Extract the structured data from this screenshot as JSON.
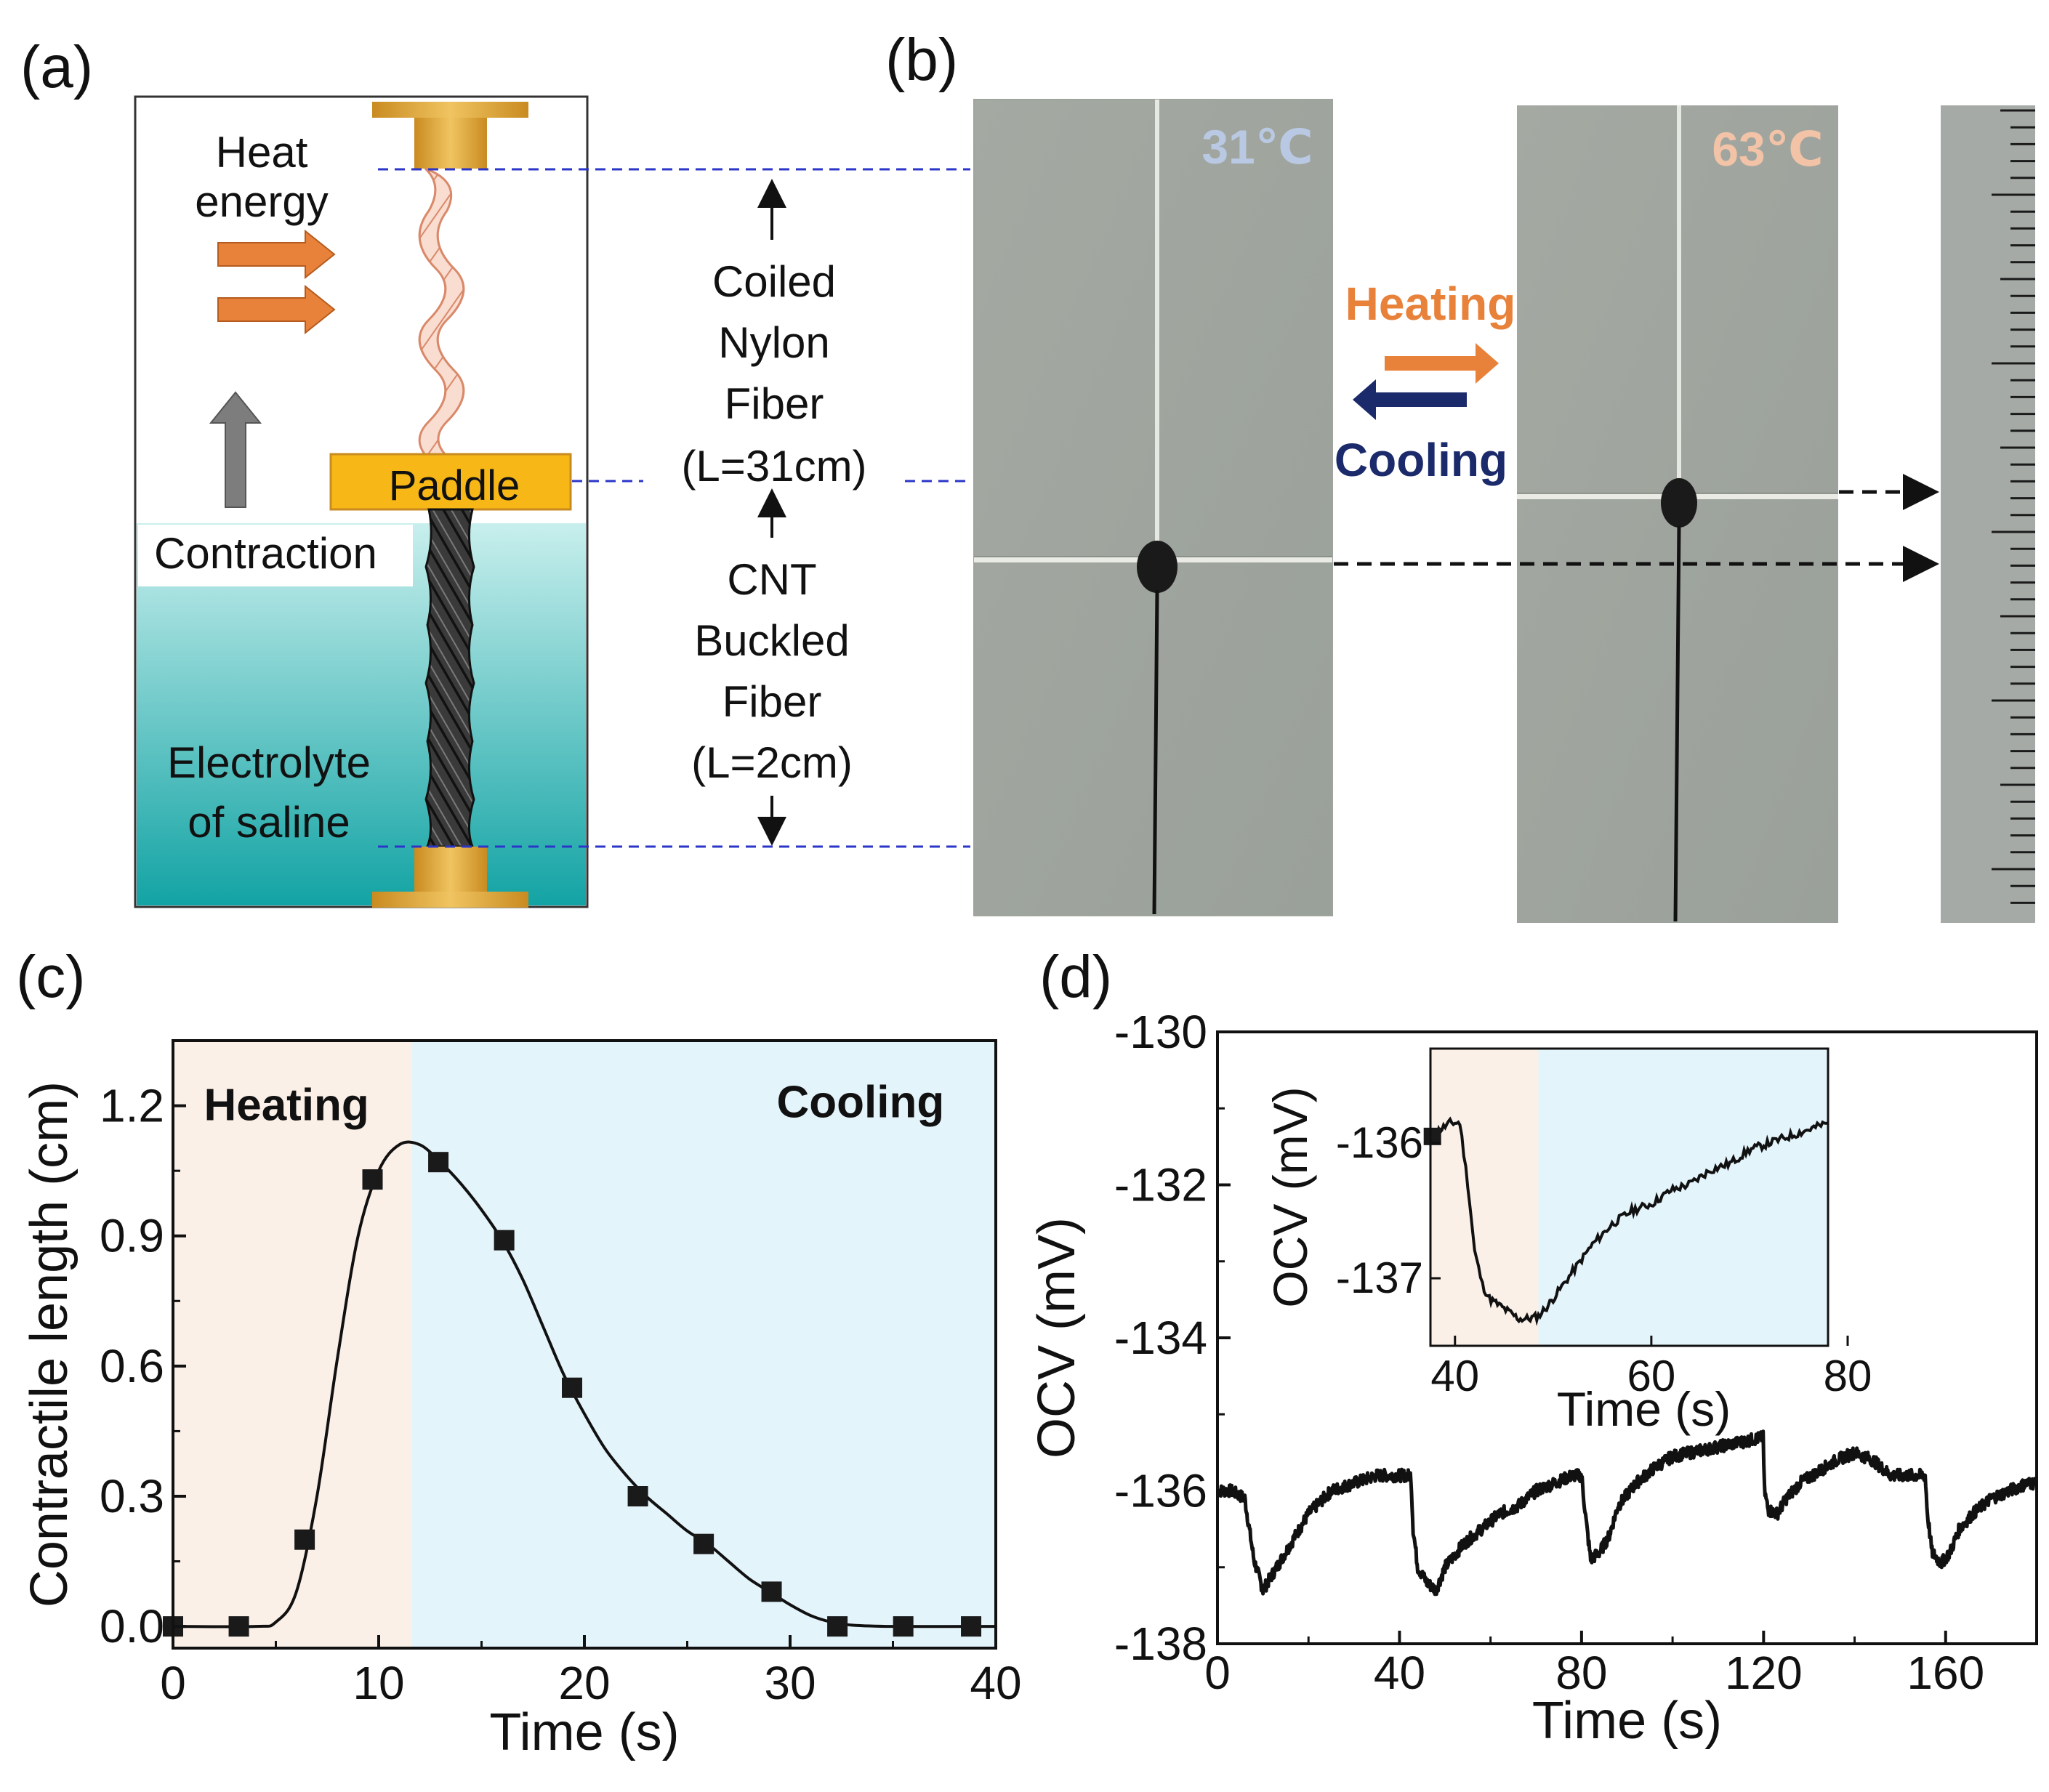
{
  "panels": {
    "a": {
      "label": "(a)",
      "heat_energy_line1": "Heat",
      "heat_energy_line2": "energy",
      "paddle": "Paddle",
      "contraction": "Contraction",
      "electrolyte_line1": "Electrolyte",
      "electrolyte_line2": "of saline",
      "coiled_line1": "Coiled",
      "coiled_line2": "Nylon",
      "coiled_line3": "Fiber",
      "coiled_line4": "(L=31cm)",
      "cnt_line1": "CNT",
      "cnt_line2": "Buckled",
      "cnt_line3": "Fiber",
      "cnt_line4": "(L=2cm)",
      "colors": {
        "arrow_orange": "#e8823a",
        "gold": "#e0a93a",
        "paddle": "#f6b717",
        "electrolyte": "#17a8a8",
        "dashed": "#2b36c8"
      }
    },
    "b": {
      "label": "(b)",
      "temp_left": "31℃",
      "temp_right": "63℃",
      "heating": "Heating",
      "cooling": "Cooling",
      "colors": {
        "temp_left": "#b9c9e3",
        "temp_right": "#f2c3a6",
        "heating": "#e8823a",
        "cooling": "#1b2a6b",
        "photo_bg": "#a5aaa3"
      }
    },
    "c": {
      "label": "(c)",
      "heating": "Heating",
      "cooling": "Cooling",
      "colors": {
        "heating_bg": "#fbf0e8",
        "cooling_bg": "#e4f4fb"
      }
    },
    "d": {
      "label": "(d)",
      "colors": {
        "heating_bg": "#fbf0e8",
        "cooling_bg": "#e4f4fb"
      }
    }
  },
  "chart_data": [
    {
      "panel": "c",
      "type": "line",
      "xlabel": "Time (s)",
      "ylabel": "Contractile length (cm)",
      "xlim": [
        0,
        40
      ],
      "ylim": [
        -0.05,
        1.35
      ],
      "xticks": [
        "0",
        "10",
        "20",
        "30",
        "40"
      ],
      "yticks": [
        "0.0",
        "0.3",
        "0.6",
        "0.9",
        "1.2"
      ],
      "regions": [
        {
          "name": "Heating",
          "x": [
            0,
            11.6
          ]
        },
        {
          "name": "Cooling",
          "x": [
            11.6,
            40
          ]
        }
      ],
      "markers": {
        "x": [
          0,
          3.2,
          6.4,
          9.7,
          12.9,
          16.1,
          19.4,
          22.6,
          25.8,
          29.1,
          32.3,
          35.5,
          38.8
        ],
        "y": [
          0.0,
          0.0,
          0.2,
          1.03,
          1.07,
          0.89,
          0.55,
          0.3,
          0.19,
          0.08,
          0.0,
          0.0,
          0.0
        ]
      },
      "curve": {
        "x": [
          0,
          4,
          5,
          6,
          7,
          8,
          9,
          10,
          11,
          12,
          13,
          14,
          15,
          16,
          17,
          18,
          19,
          20,
          21,
          22,
          23,
          24,
          25,
          26,
          27,
          28,
          29,
          30,
          31,
          32,
          33,
          35,
          40
        ],
        "y": [
          0.0,
          0.0,
          0.01,
          0.08,
          0.3,
          0.62,
          0.9,
          1.05,
          1.11,
          1.11,
          1.07,
          1.02,
          0.96,
          0.89,
          0.8,
          0.69,
          0.58,
          0.49,
          0.41,
          0.35,
          0.3,
          0.26,
          0.22,
          0.19,
          0.15,
          0.11,
          0.08,
          0.05,
          0.025,
          0.01,
          0.003,
          0.0,
          0.0
        ]
      }
    },
    {
      "panel": "d",
      "type": "line",
      "xlabel": "Time (s)",
      "ylabel": "OCV (mV)",
      "xlim": [
        0,
        180
      ],
      "ylim": [
        -138,
        -130
      ],
      "xticks": [
        "0",
        "40",
        "80",
        "120",
        "160"
      ],
      "yticks": [
        "-130",
        "-132",
        "-134",
        "-136",
        "-138"
      ],
      "series": {
        "x": [
          0,
          3,
          6,
          8,
          10,
          12,
          16,
          20,
          25,
          30,
          35,
          40,
          42.5,
          43,
          44,
          46,
          48,
          50,
          54,
          58,
          62,
          66,
          70,
          74,
          78,
          80,
          81,
          82,
          84,
          86,
          88,
          92,
          96,
          100,
          104,
          108,
          112,
          116,
          119.9,
          120.2,
          121,
          123,
          125,
          128,
          132,
          136,
          140,
          144,
          148,
          152,
          154,
          155.5,
          156,
          157,
          159,
          161,
          163,
          166,
          170,
          174,
          178,
          180
        ],
        "y": [
          -136.0,
          -136.0,
          -136.1,
          -136.9,
          -137.3,
          -137.1,
          -136.7,
          -136.3,
          -136.0,
          -135.9,
          -135.8,
          -135.8,
          -135.8,
          -136.5,
          -137.0,
          -137.2,
          -137.3,
          -137.0,
          -136.7,
          -136.5,
          -136.3,
          -136.2,
          -136.0,
          -135.9,
          -135.8,
          -135.8,
          -136.4,
          -136.9,
          -136.8,
          -136.6,
          -136.2,
          -135.9,
          -135.7,
          -135.55,
          -135.5,
          -135.45,
          -135.4,
          -135.35,
          -135.3,
          -136.0,
          -136.25,
          -136.3,
          -136.1,
          -135.9,
          -135.75,
          -135.6,
          -135.5,
          -135.6,
          -135.8,
          -135.8,
          -135.8,
          -135.8,
          -136.3,
          -136.8,
          -136.95,
          -136.8,
          -136.5,
          -136.3,
          -136.1,
          -136.0,
          -135.9,
          -135.9
        ]
      },
      "inset": {
        "xlabel": "Time (s)",
        "ylabel": "OCV (mV)",
        "xlim": [
          37.5,
          78
        ],
        "ylim": [
          -137.5,
          -135.3
        ],
        "xticks": [
          "40",
          "60",
          "80"
        ],
        "yticks": [
          "-136",
          "-137"
        ],
        "regions": [
          {
            "name": "heating",
            "x": [
              37.5,
              48.5
            ]
          },
          {
            "name": "cooling",
            "x": [
              48.5,
              78
            ]
          }
        ],
        "series": {
          "x": [
            37.5,
            38.5,
            39.5,
            40.5,
            41.3,
            42,
            42.8,
            43.5,
            44.5,
            45.5,
            46.5,
            47.5,
            48.5,
            49.5,
            50.5,
            52,
            54,
            56,
            58,
            60,
            62,
            64,
            66,
            68,
            70,
            72,
            74,
            76,
            78
          ],
          "y": [
            -135.95,
            -135.9,
            -135.85,
            -135.85,
            -136.3,
            -136.8,
            -137.05,
            -137.15,
            -137.2,
            -137.25,
            -137.3,
            -137.3,
            -137.28,
            -137.2,
            -137.1,
            -136.95,
            -136.75,
            -136.6,
            -136.5,
            -136.45,
            -136.35,
            -136.3,
            -136.2,
            -136.15,
            -136.05,
            -136.0,
            -135.95,
            -135.9,
            -135.85
          ]
        }
      }
    }
  ]
}
